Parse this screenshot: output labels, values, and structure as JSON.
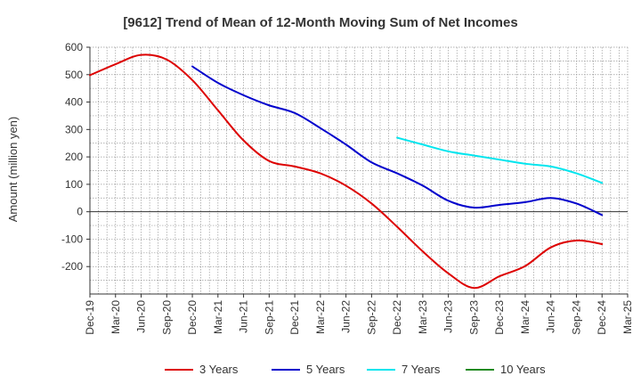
{
  "chart_data": {
    "type": "line",
    "title": "[9612]  Trend of Mean of 12-Month Moving Sum of Net Incomes",
    "xlabel": "",
    "ylabel": "Amount (million yen)",
    "ylim": [
      -300,
      600
    ],
    "yticks": [
      600,
      500,
      400,
      300,
      200,
      100,
      0,
      -100,
      -200
    ],
    "grid": true,
    "legend_position": "bottom",
    "categories": [
      "Dec-19",
      "Mar-20",
      "Jun-20",
      "Sep-20",
      "Dec-20",
      "Mar-21",
      "Jun-21",
      "Sep-21",
      "Dec-21",
      "Mar-22",
      "Jun-22",
      "Sep-22",
      "Dec-22",
      "Mar-23",
      "Jun-23",
      "Sep-23",
      "Dec-23",
      "Mar-24",
      "Jun-24",
      "Sep-24",
      "Dec-24",
      "Mar-25"
    ],
    "series": [
      {
        "name": "3 Years",
        "color": "#dd0000",
        "values": [
          498,
          538,
          572,
          555,
          480,
          370,
          260,
          185,
          165,
          140,
          95,
          30,
          -55,
          -145,
          -225,
          -278,
          -235,
          -198,
          -130,
          -105,
          -118,
          null
        ]
      },
      {
        "name": "5 Years",
        "color": "#0000cc",
        "values": [
          null,
          null,
          null,
          null,
          530,
          470,
          425,
          388,
          360,
          305,
          245,
          180,
          140,
          95,
          40,
          15,
          25,
          35,
          50,
          30,
          -12,
          null
        ]
      },
      {
        "name": "7 Years",
        "color": "#00e5ee",
        "values": [
          null,
          null,
          null,
          null,
          null,
          null,
          null,
          null,
          null,
          null,
          null,
          null,
          270,
          245,
          220,
          205,
          190,
          175,
          165,
          140,
          105,
          null
        ]
      },
      {
        "name": "10 Years",
        "color": "#228b22",
        "values": [
          null,
          null,
          null,
          null,
          null,
          null,
          null,
          null,
          null,
          null,
          null,
          null,
          null,
          null,
          null,
          null,
          null,
          null,
          null,
          null,
          null,
          null
        ]
      }
    ]
  }
}
